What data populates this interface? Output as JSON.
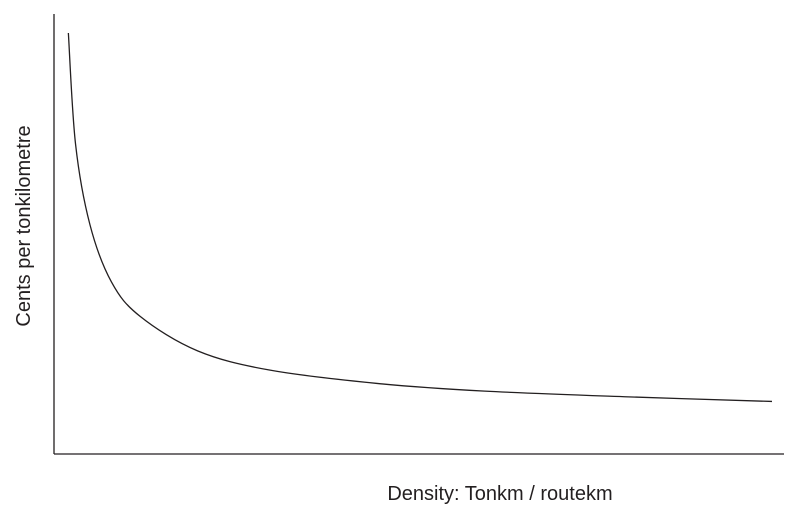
{
  "chart_data": {
    "type": "line",
    "title": "",
    "xlabel": "Density: Tonkm / routekm",
    "ylabel": "Cents per tonkilometre",
    "grid": false,
    "ticks": false,
    "series": [
      {
        "x": [
          0.02,
          0.03,
          0.05,
          0.08,
          0.12,
          0.2,
          0.3,
          0.45,
          0.6,
          0.8,
          1.0
        ],
        "y": [
          1.0,
          0.71,
          0.5,
          0.35,
          0.26,
          0.17,
          0.12,
          0.085,
          0.065,
          0.05,
          0.038
        ]
      }
    ],
    "xlim": [
      0,
      1
    ],
    "ylim": [
      0,
      1
    ]
  }
}
